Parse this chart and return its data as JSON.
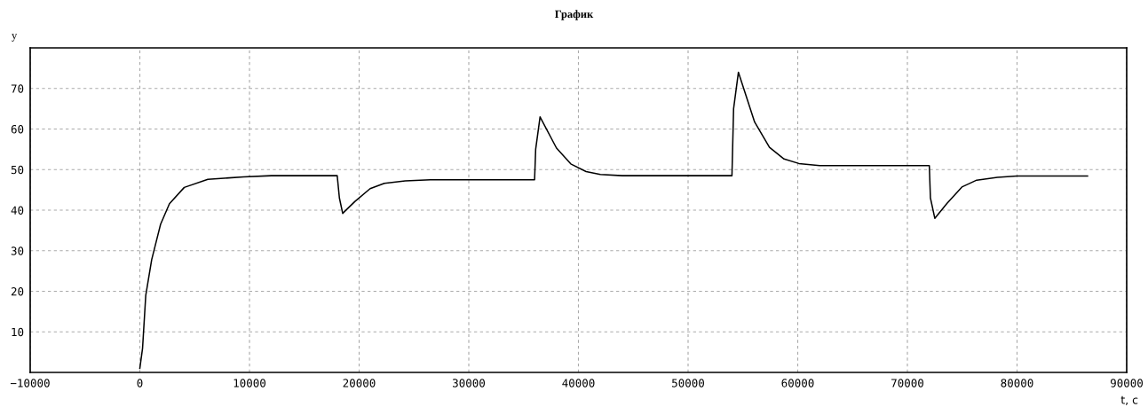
{
  "chart_data": {
    "type": "line",
    "title": "График",
    "xlabel": "t, c",
    "ylabel": "y",
    "x": [
      0,
      250,
      540,
      1080,
      1890,
      2700,
      4050,
      6200,
      9460,
      12000,
      18000,
      18200,
      18500,
      19600,
      21000,
      22300,
      24200,
      26500,
      30000,
      36000,
      36100,
      36500,
      38000,
      39300,
      40700,
      42000,
      44000,
      50000,
      54000,
      54150,
      54590,
      56070,
      57420,
      58750,
      60100,
      62000,
      66000,
      72000,
      72100,
      72500,
      73620,
      74970,
      76320,
      78210,
      80000,
      86430
    ],
    "series": [
      {
        "color": "#000000",
        "values": [
          1,
          6,
          19,
          27.8,
          36.5,
          41.6,
          45.6,
          47.6,
          48.2,
          48.5,
          48.5,
          43,
          39.2,
          42.1,
          45.3,
          46.6,
          47.2,
          47.5,
          47.5,
          47.5,
          55,
          63,
          55.3,
          51.4,
          49.5,
          48.8,
          48.5,
          48.5,
          48.5,
          65,
          74,
          61.7,
          55.5,
          52.6,
          51.5,
          51,
          51,
          51,
          43,
          38,
          41.7,
          45.7,
          47.4,
          48.1,
          48.4,
          48.4
        ]
      }
    ],
    "xlim": [
      -10000,
      90000
    ],
    "xticks": [
      {
        "value": -10000,
        "label": "−10000"
      },
      0,
      10000,
      20000,
      30000,
      40000,
      50000,
      60000,
      70000,
      80000,
      90000
    ],
    "ylim": [
      0,
      80
    ],
    "yticks": [
      10,
      20,
      30,
      40,
      50,
      60,
      70
    ],
    "grid": true,
    "legend": false,
    "marker": "none",
    "line_style": "solid"
  }
}
